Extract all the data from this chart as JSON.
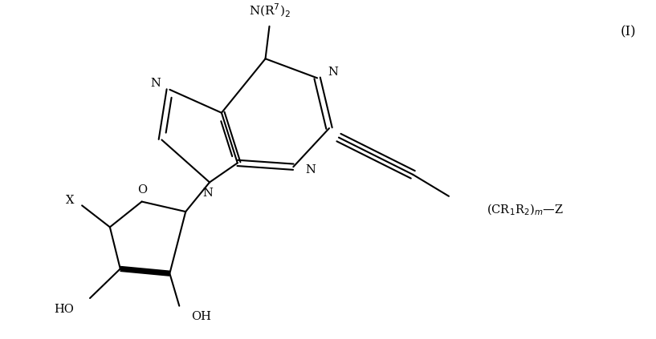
{
  "figsize": [
    8.17,
    4.23
  ],
  "dpi": 100,
  "bg_color": "#ffffff",
  "line_color": "#000000",
  "line_width": 1.5,
  "font_size": 10.5,
  "label_I": "(I)",
  "label_NR72": "N(R$^7$)$_2$",
  "label_N_imid_top": "N",
  "label_N_pyr_right": "N",
  "label_N_pyr_bot": "N",
  "label_N9": "N",
  "label_O": "O",
  "label_X": "X",
  "label_HO": "HO",
  "label_OH": "OH",
  "label_CR1R2mZ": "(CR$_1$R$_2$)$_m$—Z"
}
